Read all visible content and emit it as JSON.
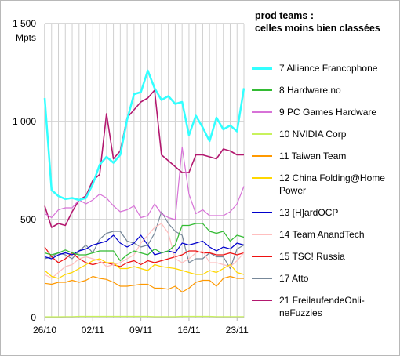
{
  "chart_data": {
    "type": "line",
    "title_lines": [
      "prod teams :",
      "celles moins bien classées"
    ],
    "y_unit": "Mpts",
    "ylim": [
      0,
      1500
    ],
    "yticks": [
      0,
      500,
      1000,
      1500
    ],
    "ytick_labels": [
      "0",
      "500",
      "1 000",
      "1 500"
    ],
    "xtick_labels": [
      "26/10",
      "02/11",
      "09/11",
      "16/11",
      "23/11"
    ],
    "x": [
      "26/10",
      "27/10",
      "28/10",
      "29/10",
      "30/10",
      "31/10",
      "01/11",
      "02/11",
      "03/11",
      "04/11",
      "05/11",
      "06/11",
      "07/11",
      "08/11",
      "09/11",
      "10/11",
      "11/11",
      "12/11",
      "13/11",
      "14/11",
      "15/11",
      "16/11",
      "17/11",
      "18/11",
      "19/11",
      "20/11",
      "21/11",
      "22/11",
      "23/11",
      "24/11"
    ],
    "grid": true,
    "legend_position": "right",
    "series": [
      {
        "name": "7 Alliance Francophone",
        "color": "#33ffff",
        "width": 2.5,
        "values": [
          1120,
          650,
          620,
          605,
          610,
          600,
          610,
          680,
          780,
          820,
          790,
          830,
          1010,
          1140,
          1150,
          1260,
          1170,
          1110,
          1130,
          1090,
          1100,
          930,
          1030,
          970,
          900,
          1020,
          960,
          980,
          950,
          1170
        ]
      },
      {
        "name": "8 Hardware.no",
        "color": "#33bb33",
        "width": 1.2,
        "values": [
          330,
          320,
          330,
          345,
          330,
          320,
          320,
          330,
          340,
          340,
          340,
          290,
          320,
          340,
          330,
          320,
          350,
          330,
          340,
          370,
          470,
          470,
          480,
          480,
          440,
          430,
          440,
          390,
          420,
          410
        ]
      },
      {
        "name": "9 PC Games Hardware",
        "color": "#d772d7",
        "width": 1.2,
        "values": [
          530,
          510,
          550,
          560,
          560,
          600,
          580,
          600,
          630,
          610,
          570,
          540,
          550,
          570,
          510,
          520,
          580,
          530,
          510,
          500,
          870,
          630,
          530,
          550,
          520,
          520,
          520,
          540,
          580,
          670
        ]
      },
      {
        "name": "10 NVIDIA Corp",
        "color": "#c8f25c",
        "width": 1.2,
        "values": [
          4,
          4,
          4,
          5,
          5,
          6,
          6,
          6,
          6,
          6,
          6,
          6,
          6,
          6,
          6,
          6,
          5,
          5,
          5,
          5,
          6,
          6,
          6,
          6,
          6,
          5,
          5,
          5,
          5,
          5
        ]
      },
      {
        "name": "11 Taiwan Team",
        "color": "#ff9900",
        "width": 1.2,
        "values": [
          175,
          170,
          180,
          180,
          190,
          180,
          190,
          210,
          200,
          195,
          180,
          160,
          160,
          165,
          170,
          170,
          150,
          150,
          145,
          160,
          130,
          150,
          180,
          190,
          190,
          160,
          200,
          210,
          200,
          200
        ]
      },
      {
        "name": "12 China Folding@Home Power",
        "color": "#ffd700",
        "width": 1.2,
        "values": [
          240,
          210,
          200,
          220,
          230,
          250,
          270,
          290,
          300,
          280,
          280,
          250,
          250,
          260,
          250,
          240,
          270,
          260,
          255,
          250,
          240,
          230,
          220,
          220,
          240,
          230,
          250,
          270,
          230,
          220
        ]
      },
      {
        "name": "13 [H]ardOCP",
        "color": "#0000cc",
        "width": 1.2,
        "values": [
          310,
          300,
          320,
          330,
          320,
          340,
          350,
          370,
          380,
          390,
          420,
          380,
          360,
          380,
          420,
          370,
          320,
          330,
          340,
          330,
          380,
          370,
          380,
          390,
          360,
          340,
          360,
          350,
          380,
          370
        ]
      },
      {
        "name": "14 Team AnandTech",
        "color": "#ffbfbf",
        "width": 1.2,
        "values": [
          220,
          200,
          230,
          260,
          270,
          300,
          310,
          300,
          290,
          260,
          270,
          280,
          300,
          320,
          380,
          420,
          460,
          480,
          430,
          300,
          280,
          300,
          330,
          340,
          280,
          280,
          270,
          260,
          290,
          330
        ]
      },
      {
        "name": "15 TSC! Russia",
        "color": "#ee1111",
        "width": 1.2,
        "values": [
          360,
          310,
          280,
          300,
          330,
          300,
          280,
          270,
          280,
          280,
          270,
          260,
          280,
          290,
          270,
          290,
          280,
          290,
          300,
          310,
          320,
          340,
          340,
          330,
          330,
          320,
          320,
          330,
          320,
          330
        ]
      },
      {
        "name": "17 Atto",
        "color": "#778899",
        "width": 1.2,
        "values": [
          300,
          310,
          330,
          320,
          300,
          340,
          370,
          330,
          400,
          430,
          440,
          440,
          390,
          380,
          360,
          370,
          430,
          540,
          480,
          440,
          420,
          280,
          300,
          300,
          330,
          310,
          310,
          250,
          350,
          370
        ]
      },
      {
        "name": "21 FreilaufendeOnlineFuzzies",
        "label": "21 FreilaufendeOnli-\nneFuzzies",
        "color": "#b3186f",
        "width": 1.6,
        "values": [
          570,
          460,
          480,
          470,
          540,
          600,
          620,
          700,
          730,
          1040,
          810,
          850,
          1020,
          1060,
          1100,
          1120,
          1160,
          830,
          800,
          770,
          740,
          740,
          830,
          830,
          820,
          810,
          860,
          850,
          830,
          830
        ]
      }
    ]
  }
}
